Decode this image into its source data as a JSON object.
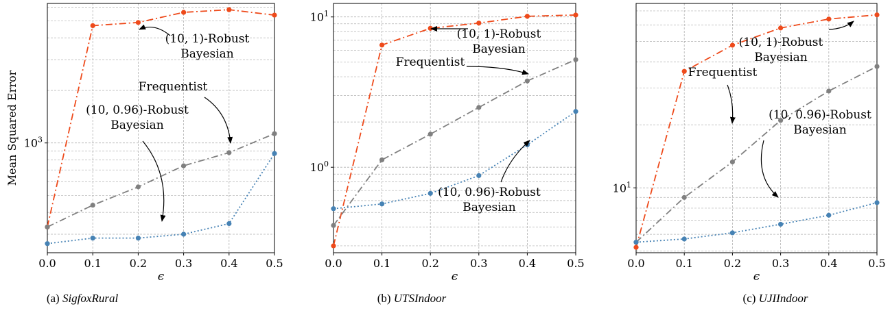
{
  "chart_data": [
    {
      "type": "line",
      "caption_prefix": "(a)",
      "caption_name": "SigfoxRural",
      "xlabel": "ϵ",
      "ylabel": "Mean Squared Error",
      "yscale": "log",
      "ylim": [
        235,
        6300
      ],
      "xlim": [
        0,
        0.5
      ],
      "grid": true,
      "x": [
        0.0,
        0.1,
        0.2,
        0.3,
        0.4,
        0.5
      ],
      "x_ticks": [
        "0.0",
        "0.1",
        "0.2",
        "0.3",
        "0.4",
        "0.5"
      ],
      "y_ticks": [
        {
          "value": 1000,
          "base": "10",
          "exp": "3"
        }
      ],
      "series": [
        {
          "name": "(10, 1)-Robust Bayesian",
          "color": "#ee4a1b",
          "style": "dashdot",
          "values": [
            330,
            4700,
            4900,
            5600,
            5800,
            5400
          ]
        },
        {
          "name": "Frequentist",
          "color": "#808080",
          "style": "dashdot",
          "values": [
            330,
            440,
            560,
            740,
            880,
            1130
          ]
        },
        {
          "name": "(10, 0.96)-Robust Bayesian",
          "color": "#4682b4",
          "style": "dotted",
          "values": [
            265,
            285,
            285,
            300,
            345,
            870
          ]
        }
      ],
      "annotations": [
        {
          "lines": [
            "(10, 1)-Robust",
            "Bayesian"
          ]
        },
        {
          "lines": [
            "Frequentist"
          ]
        },
        {
          "lines": [
            "(10, 0.96)-Robust",
            "Bayesian"
          ]
        }
      ]
    },
    {
      "type": "line",
      "caption_prefix": "(b)",
      "caption_name": "UTSIndoor",
      "xlabel": "ϵ",
      "yscale": "log",
      "ylim": [
        0.27,
        12.3
      ],
      "xlim": [
        0,
        0.5
      ],
      "grid": true,
      "x": [
        0.0,
        0.1,
        0.2,
        0.3,
        0.4,
        0.5
      ],
      "x_ticks": [
        "0.0",
        "0.1",
        "0.2",
        "0.3",
        "0.4",
        "0.5"
      ],
      "y_ticks": [
        {
          "value": 1,
          "base": "10",
          "exp": "0"
        },
        {
          "value": 10,
          "base": "10",
          "exp": "1"
        }
      ],
      "series": [
        {
          "name": "(10, 1)-Robust Bayesian",
          "color": "#ee4a1b",
          "style": "dashdot",
          "values": [
            0.3,
            6.5,
            8.4,
            9.1,
            10.1,
            10.3
          ]
        },
        {
          "name": "Frequentist",
          "color": "#808080",
          "style": "dashdot",
          "values": [
            0.41,
            1.12,
            1.66,
            2.5,
            3.75,
            5.2
          ]
        },
        {
          "name": "(10, 0.96)-Robust Bayesian",
          "color": "#4682b4",
          "style": "dotted",
          "values": [
            0.53,
            0.57,
            0.67,
            0.88,
            1.41,
            2.35
          ]
        }
      ],
      "annotations": [
        {
          "lines": [
            "(10, 1)-Robust",
            "Bayesian"
          ]
        },
        {
          "lines": [
            "Frequentist"
          ]
        },
        {
          "lines": [
            "(10, 0.96)-Robust",
            "Bayesian"
          ]
        }
      ]
    },
    {
      "type": "line",
      "caption_prefix": "(c)",
      "caption_name": "UJIIndoor",
      "xlabel": "ϵ",
      "yscale": "log",
      "ylim": [
        4.9,
        76
      ],
      "xlim": [
        0,
        0.5
      ],
      "grid": true,
      "x": [
        0.0,
        0.1,
        0.2,
        0.3,
        0.4,
        0.5
      ],
      "x_ticks": [
        "0.0",
        "0.1",
        "0.2",
        "0.3",
        "0.4",
        "0.5"
      ],
      "y_ticks": [
        {
          "value": 10,
          "base": "10",
          "exp": "1"
        }
      ],
      "series": [
        {
          "name": "(10, 1)-Robust Bayesian",
          "color": "#ee4a1b",
          "style": "dashdot",
          "values": [
            5.2,
            36,
            48,
            58,
            64,
            67
          ]
        },
        {
          "name": "Frequentist",
          "color": "#808080",
          "style": "dashdot",
          "values": [
            5.5,
            9.0,
            13.3,
            21,
            29,
            38
          ]
        },
        {
          "name": "(10, 0.96)-Robust Bayesian",
          "color": "#4682b4",
          "style": "dotted",
          "values": [
            5.5,
            5.7,
            6.1,
            6.7,
            7.4,
            8.5
          ]
        }
      ],
      "annotations": [
        {
          "lines": [
            "(10, 1)-Robust",
            "Bayesian"
          ]
        },
        {
          "lines": [
            "Frequentist"
          ]
        },
        {
          "lines": [
            "(10, 0.96)-Robust",
            "Bayesian"
          ]
        }
      ]
    }
  ]
}
